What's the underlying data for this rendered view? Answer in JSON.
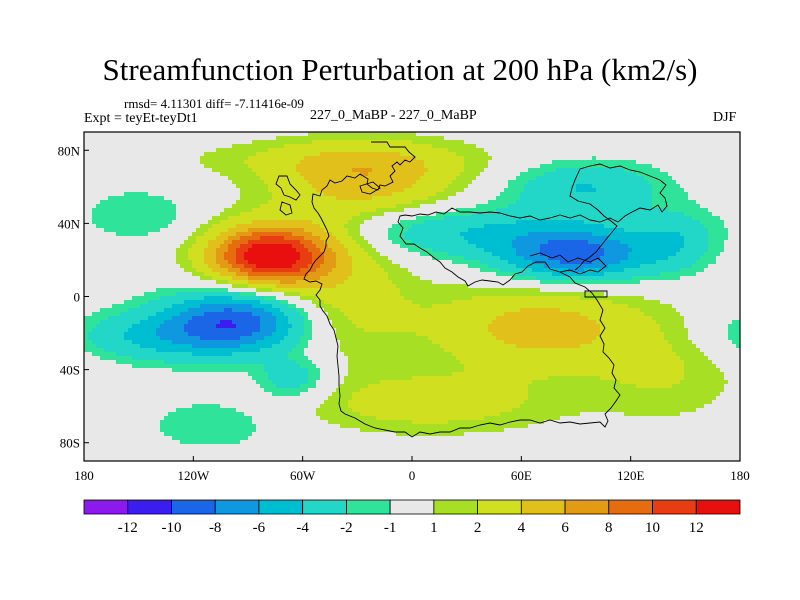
{
  "figure": {
    "title": "Streamfunction Perturbation at 200 hPa (km2/s)",
    "stats": "rmsd= 4.11301 diff= -7.11416e-09",
    "experiment": "Expt = teyEt-teyDt1",
    "subtitle": "227_0_MaBP - 227_0_MaBP",
    "season": "DJF"
  },
  "colors": {
    "palette": [
      "#8c1aef",
      "#3b1df0",
      "#1a66e6",
      "#0f98df",
      "#00bed2",
      "#22d6c8",
      "#30e39a",
      "#e8e8e8",
      "#a6df23",
      "#d0df20",
      "#e2c01b",
      "#e39a14",
      "#e56d10",
      "#e83d12",
      "#e80f0f"
    ]
  },
  "chart_data": {
    "type": "contour-map",
    "projection": "cylindrical-equidistant",
    "variable": "Streamfunction Perturbation at 200 hPa",
    "units": "km2/s",
    "xlim": [
      -180,
      180
    ],
    "ylim": [
      -90,
      90
    ],
    "x_ticks": [
      -180,
      -120,
      -60,
      0,
      60,
      120,
      180
    ],
    "x_tick_labels": [
      "180",
      "120W",
      "60W",
      "0",
      "60E",
      "120E",
      "180"
    ],
    "y_ticks": [
      80,
      40,
      0,
      -40,
      -80
    ],
    "y_tick_labels": [
      "80N",
      "40N",
      "0",
      "40S",
      "80S"
    ],
    "contour_levels": [
      -12,
      -10,
      -8,
      -6,
      -4,
      -2,
      -1,
      1,
      2,
      4,
      6,
      8,
      10,
      12
    ],
    "colorbar_labels": [
      "-12",
      "-10",
      "-8",
      "-6",
      "-4",
      "-2",
      "-1",
      "1",
      "2",
      "4",
      "6",
      "8",
      "10",
      "12"
    ],
    "features": [
      {
        "name": "max-north-atlantic-subtropics",
        "lon": -80,
        "lat": 22,
        "value": 11.5,
        "sx": 22,
        "sy": 11
      },
      {
        "name": "max-mid-atlantic",
        "lon": -60,
        "lat": 28,
        "value": 4,
        "sx": 30,
        "sy": 14
      },
      {
        "name": "min-south-east-pacific",
        "lon": -95,
        "lat": -13,
        "value": -9,
        "sx": 28,
        "sy": 12
      },
      {
        "name": "min-south-pacific-belt",
        "lon": -140,
        "lat": -22,
        "value": -4,
        "sx": 38,
        "sy": 10
      },
      {
        "name": "min-south-atlantic",
        "lon": -65,
        "lat": -45,
        "value": -3.5,
        "sx": 14,
        "sy": 8
      },
      {
        "name": "min-asia",
        "lon": 90,
        "lat": 22,
        "value": -8.5,
        "sx": 28,
        "sy": 10
      },
      {
        "name": "min-north-pacific",
        "lon": 30,
        "lat": 35,
        "value": -4,
        "sx": 60,
        "sy": 10
      },
      {
        "name": "min-siberia",
        "lon": 95,
        "lat": 60,
        "value": -4,
        "sx": 30,
        "sy": 10
      },
      {
        "name": "min-west-pacific",
        "lon": 145,
        "lat": 30,
        "value": -3,
        "sx": 15,
        "sy": 12
      },
      {
        "name": "max-europe-arctic",
        "lon": -25,
        "lat": 63,
        "value": 5,
        "sx": 35,
        "sy": 14
      },
      {
        "name": "max-arctic-ring",
        "lon": -40,
        "lat": 75,
        "value": 2,
        "sx": 60,
        "sy": 8
      },
      {
        "name": "max-south-africa-indian",
        "lon": 70,
        "lat": -17,
        "value": 5,
        "sx": 40,
        "sy": 16
      },
      {
        "name": "max-southern-ocean",
        "lon": 10,
        "lat": -58,
        "value": 3,
        "sx": 50,
        "sy": 12
      },
      {
        "name": "max-west-australia",
        "lon": 140,
        "lat": -40,
        "value": 2,
        "sx": 30,
        "sy": 20
      },
      {
        "name": "min-antarctic",
        "lon": -110,
        "lat": -70,
        "value": -2,
        "sx": 25,
        "sy": 10
      },
      {
        "name": "max-equatorial-atlantic",
        "lon": -40,
        "lat": -5,
        "value": 3,
        "sx": 30,
        "sy": 20
      },
      {
        "name": "min-east-north-pacific",
        "lon": -150,
        "lat": 45,
        "value": -2,
        "sx": 20,
        "sy": 10
      }
    ]
  }
}
